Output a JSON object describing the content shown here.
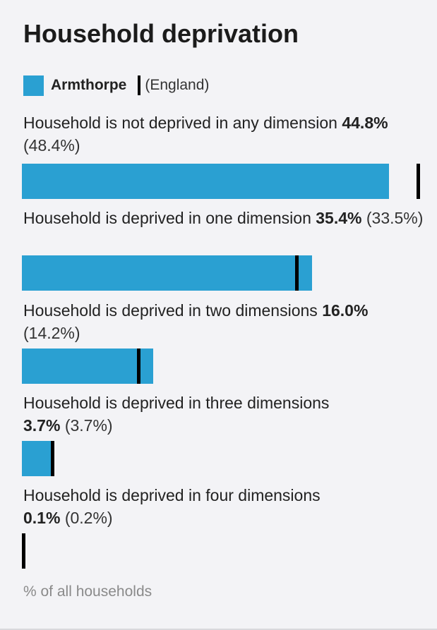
{
  "title": "Household deprivation",
  "legend": {
    "primary": "Armthorpe",
    "secondary": "(England)"
  },
  "footnote": "% of all households",
  "colors": {
    "primary_bar": "#2aa0d2",
    "comparison_marker": "#000000"
  },
  "rows": [
    {
      "label": "Household is not deprived in any dimension ",
      "value_text": "44.8%",
      "comparison_text": " (48.4%)"
    },
    {
      "label": "Household is deprived in one dimension ",
      "value_text": "35.4%",
      "comparison_text": " (33.5%)"
    },
    {
      "label": "Household is deprived in two dimensions ",
      "value_text": "16.0%",
      "comparison_text": " (14.2%)"
    },
    {
      "label": "Household is deprived in three dimensions ",
      "value_text": "3.7%",
      "comparison_text": " (3.7%)"
    },
    {
      "label": "Household is deprived in four dimensions ",
      "value_text": "0.1%",
      "comparison_text": " (0.2%)"
    }
  ],
  "chart_data": {
    "type": "bar",
    "orientation": "horizontal",
    "title": "Household deprivation",
    "categories": [
      "Household is not deprived in any dimension",
      "Household is deprived in one dimension",
      "Household is deprived in two dimensions",
      "Household is deprived in three dimensions",
      "Household is deprived in four dimensions"
    ],
    "series": [
      {
        "name": "Armthorpe",
        "values": [
          44.8,
          35.4,
          16.0,
          3.7,
          0.1
        ]
      },
      {
        "name": "England",
        "values": [
          48.4,
          33.5,
          14.2,
          3.7,
          0.2
        ]
      }
    ],
    "xlabel": "% of all households",
    "ylabel": "",
    "xlim": [
      0,
      50
    ],
    "grid": false,
    "legend": "top"
  }
}
